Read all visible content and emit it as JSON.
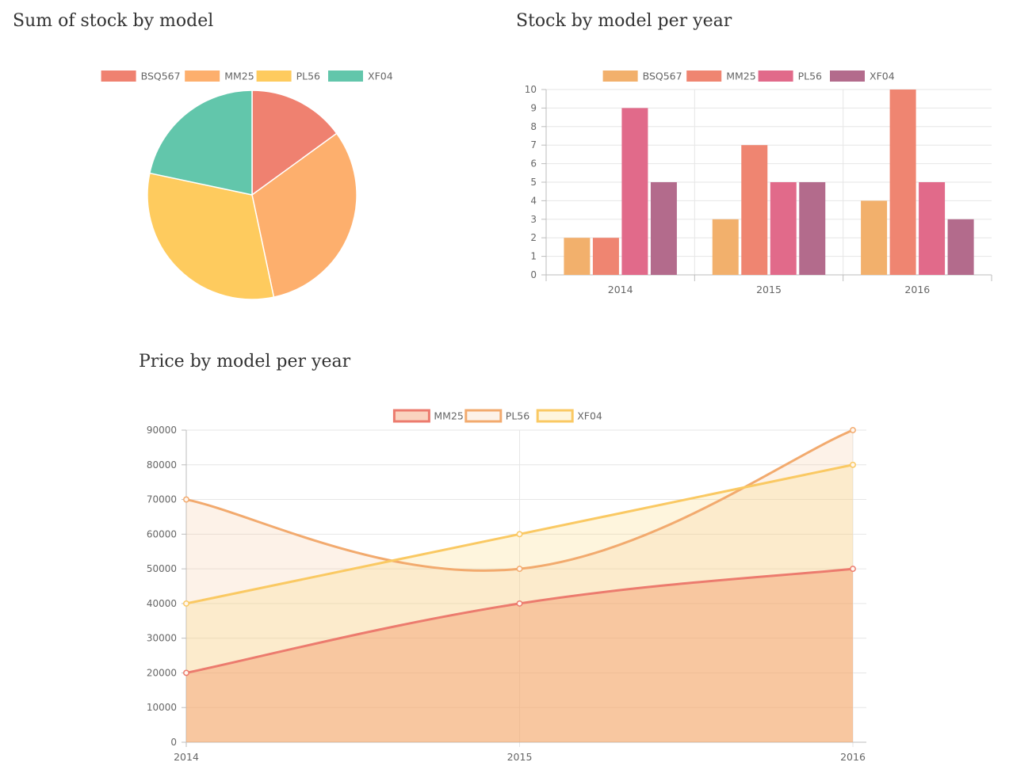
{
  "colors": {
    "pie": [
      "#ef8170",
      "#fdaf6d",
      "#fecb5e",
      "#62c6ab"
    ],
    "bar": [
      "#f2b06c",
      "#ef8571",
      "#e16a8a",
      "#b36b8c"
    ],
    "line": [
      "#ec7b6e",
      "#f2aa6e",
      "#fac963"
    ],
    "line_fill": [
      "rgba(243,145,95,0.40)",
      "rgba(248,198,150,0.22)",
      "rgba(253,215,120,0.25)"
    ],
    "grid": "#e6e6e6",
    "axis": "#bdbdbd",
    "text": "#666666"
  },
  "chart_data": [
    {
      "type": "pie",
      "title": "Sum of stock by model",
      "legend_position": "top",
      "labels": [
        "BSQ567",
        "MM25",
        "PL56",
        "XF04"
      ],
      "values": [
        9,
        19,
        19,
        13
      ]
    },
    {
      "type": "bar",
      "title": "Stock by model per year",
      "legend_position": "top",
      "categories": [
        "2014",
        "2015",
        "2016"
      ],
      "series": [
        {
          "name": "BSQ567",
          "values": [
            2,
            3,
            4
          ]
        },
        {
          "name": "MM25",
          "values": [
            2,
            7,
            10
          ]
        },
        {
          "name": "PL56",
          "values": [
            9,
            5,
            5
          ]
        },
        {
          "name": "XF04",
          "values": [
            5,
            5,
            3
          ]
        }
      ],
      "ylim": [
        0,
        10
      ],
      "yticks": [
        0,
        1,
        2,
        3,
        4,
        5,
        6,
        7,
        8,
        9,
        10
      ],
      "grid": true
    },
    {
      "type": "area",
      "title": "Price by model per year",
      "legend_position": "top",
      "x": [
        "2014",
        "2015",
        "2016"
      ],
      "series": [
        {
          "name": "MM25",
          "values": [
            20000,
            40000,
            50000
          ]
        },
        {
          "name": "PL56",
          "values": [
            70000,
            50000,
            90000
          ]
        },
        {
          "name": "XF04",
          "values": [
            40000,
            60000,
            80000
          ]
        }
      ],
      "ylim": [
        0,
        90000
      ],
      "yticks": [
        0,
        10000,
        20000,
        30000,
        40000,
        50000,
        60000,
        70000,
        80000,
        90000
      ],
      "grid": true
    }
  ]
}
